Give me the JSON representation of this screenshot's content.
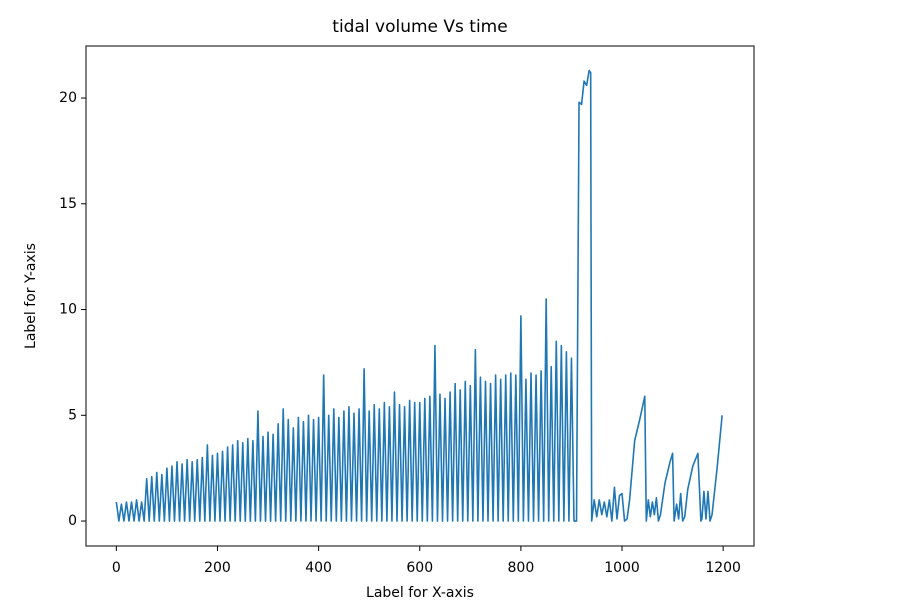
{
  "chart_data": {
    "type": "line",
    "title": "tidal volume Vs time",
    "x_label": "Label for X-axis",
    "y_label": "Label for Y-axis",
    "color": "#1f77b4",
    "xlim": [
      -60,
      1261
    ],
    "ylim": [
      -1.18,
      22.46
    ],
    "xticks": [
      0,
      200,
      400,
      600,
      800,
      1000,
      1200
    ],
    "yticks": [
      0,
      5,
      10,
      15,
      20
    ],
    "x": [
      0,
      5,
      10,
      15,
      20,
      25,
      30,
      35,
      40,
      45,
      50,
      55,
      60,
      65,
      70,
      75,
      80,
      85,
      90,
      95,
      100,
      105,
      110,
      115,
      120,
      125,
      130,
      135,
      140,
      145,
      150,
      155,
      160,
      165,
      170,
      175,
      180,
      185,
      190,
      195,
      200,
      205,
      210,
      215,
      220,
      225,
      230,
      235,
      240,
      245,
      250,
      255,
      260,
      265,
      270,
      275,
      280,
      285,
      290,
      295,
      300,
      305,
      310,
      315,
      320,
      325,
      330,
      335,
      340,
      345,
      350,
      355,
      360,
      365,
      370,
      375,
      380,
      385,
      390,
      395,
      400,
      405,
      410,
      415,
      420,
      425,
      430,
      435,
      440,
      445,
      450,
      455,
      460,
      465,
      470,
      475,
      480,
      485,
      490,
      495,
      500,
      505,
      510,
      515,
      520,
      525,
      530,
      535,
      540,
      545,
      550,
      555,
      560,
      565,
      570,
      575,
      580,
      585,
      590,
      595,
      600,
      605,
      610,
      615,
      620,
      625,
      630,
      635,
      640,
      645,
      650,
      655,
      660,
      665,
      670,
      675,
      680,
      685,
      690,
      695,
      700,
      705,
      710,
      715,
      720,
      725,
      730,
      735,
      740,
      745,
      750,
      755,
      760,
      765,
      770,
      775,
      780,
      785,
      790,
      795,
      800,
      805,
      810,
      815,
      820,
      825,
      830,
      835,
      840,
      845,
      850,
      855,
      860,
      865,
      870,
      875,
      880,
      885,
      890,
      895,
      900,
      905,
      910,
      915,
      920,
      925,
      930,
      935,
      938,
      940,
      945,
      950,
      955,
      960,
      965,
      970,
      975,
      980,
      985,
      990,
      995,
      1000,
      1005,
      1010,
      1015,
      1025,
      1035,
      1045,
      1048,
      1052,
      1056,
      1060,
      1064,
      1068,
      1072,
      1076,
      1085,
      1095,
      1100,
      1103,
      1108,
      1112,
      1116,
      1120,
      1124,
      1130,
      1140,
      1150,
      1156,
      1158,
      1162,
      1166,
      1170,
      1174,
      1178,
      1188,
      1198
    ],
    "values": [
      0.9,
      0,
      0.8,
      0,
      0.9,
      0,
      0.9,
      0,
      1.0,
      0,
      0.9,
      0,
      2.0,
      0,
      2.1,
      0,
      2.3,
      0,
      2.2,
      0,
      2.5,
      0,
      2.6,
      0,
      2.8,
      0,
      2.7,
      0,
      2.9,
      0,
      2.8,
      0,
      2.9,
      0,
      3.0,
      0,
      3.6,
      0,
      3.1,
      0,
      3.2,
      0,
      3.3,
      0,
      3.5,
      0,
      3.6,
      0,
      3.8,
      0,
      3.7,
      0,
      3.9,
      0,
      3.8,
      0,
      5.2,
      0,
      4.0,
      0,
      4.2,
      0,
      4.1,
      0,
      4.6,
      0,
      5.3,
      0,
      4.8,
      0,
      4.4,
      0,
      4.9,
      0,
      4.7,
      0,
      5.0,
      0,
      4.8,
      0,
      4.9,
      0,
      6.9,
      0,
      5.0,
      0,
      5.3,
      0,
      4.9,
      0,
      5.2,
      0,
      5.4,
      0,
      5.1,
      0,
      5.3,
      0,
      7.2,
      0,
      5.2,
      0,
      5.5,
      0,
      5.3,
      0,
      5.6,
      0,
      5.4,
      0,
      6.1,
      0,
      5.5,
      0,
      5.4,
      0,
      5.7,
      0,
      5.6,
      0,
      5.6,
      0,
      5.8,
      0,
      5.9,
      0,
      8.3,
      0,
      6.0,
      0,
      5.8,
      0,
      6.1,
      0,
      6.5,
      0,
      6.2,
      0,
      6.6,
      0,
      6.4,
      0,
      8.1,
      0,
      6.8,
      0,
      6.6,
      0,
      6.5,
      0,
      6.9,
      0,
      6.7,
      0,
      6.9,
      0,
      7.0,
      0,
      6.9,
      0,
      9.7,
      0,
      6.7,
      0,
      7.0,
      0,
      6.9,
      0,
      7.1,
      0,
      10.5,
      0,
      7.3,
      0,
      8.5,
      0,
      8.3,
      0,
      8.0,
      0,
      7.7,
      0,
      0,
      19.8,
      19.7,
      20.8,
      20.6,
      21.3,
      21.2,
      0,
      1.0,
      0.2,
      1.0,
      0.3,
      0.9,
      0.2,
      1.0,
      0,
      1.6,
      0.1,
      1.2,
      1.3,
      0,
      0.1,
      1.0,
      3.8,
      4.8,
      5.9,
      0,
      1.0,
      0.2,
      0.9,
      0.3,
      1.1,
      0,
      0.3,
      1.8,
      2.8,
      3.2,
      0,
      0.8,
      0.1,
      1.3,
      0,
      0.2,
      1.5,
      2.6,
      3.2,
      0,
      0.1,
      1.4,
      0.1,
      1.4,
      0,
      0.3,
      2.5,
      5.0
    ]
  }
}
